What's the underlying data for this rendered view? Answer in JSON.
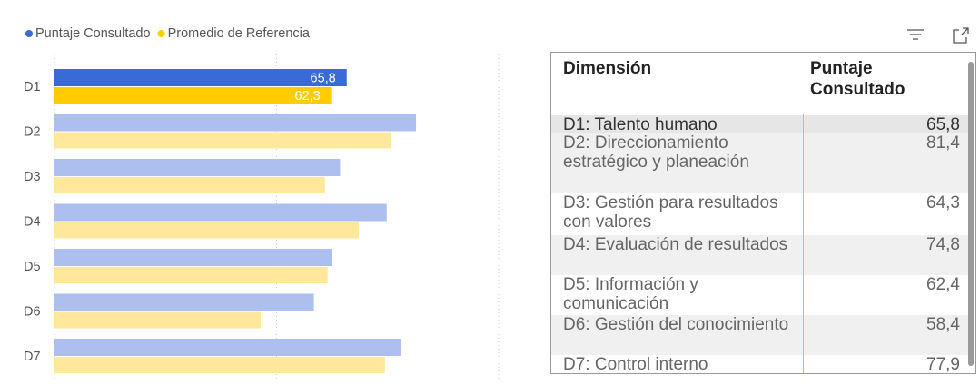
{
  "chart_data": {
    "type": "hbar",
    "categories": [
      "D1",
      "D2",
      "D3",
      "D4",
      "D5",
      "D6",
      "D7"
    ],
    "series": [
      {
        "name": "Puntaje Consultado",
        "color": "#3a6ad6",
        "dim_color": "#adbfee",
        "values": [
          65.8,
          81.4,
          64.3,
          74.8,
          62.4,
          58.4,
          77.9
        ],
        "value_labels": [
          "65,8",
          null,
          null,
          null,
          null,
          null,
          null
        ]
      },
      {
        "name": "Promedio de Referencia",
        "color": "#ffcc00",
        "dim_color": "#ffe79c",
        "values": [
          62.3,
          75.8,
          60.9,
          68.5,
          61.5,
          46.4,
          74.4
        ],
        "value_labels": [
          "62,3",
          null,
          null,
          null,
          null,
          null,
          null
        ]
      }
    ],
    "selected_category": "D1",
    "xlim": [
      0,
      100
    ],
    "xticks": [
      0,
      50,
      100
    ],
    "grid": true
  },
  "table": {
    "columns": [
      "Dimensión",
      "Puntaje Consultado"
    ],
    "rows": [
      [
        "D1: Talento humano",
        "65,8"
      ],
      [
        "D2: Direccionamiento estratégico y planeación",
        "81,4"
      ],
      [
        "D3: Gestión para resultados con valores",
        "64,3"
      ],
      [
        "D4: Evaluación de resultados",
        "74,8"
      ],
      [
        "D5: Información y comunicación",
        "62,4"
      ],
      [
        "D6: Gestión del conocimiento",
        "58,4"
      ],
      [
        "D7: Control interno",
        "77,9"
      ]
    ]
  }
}
